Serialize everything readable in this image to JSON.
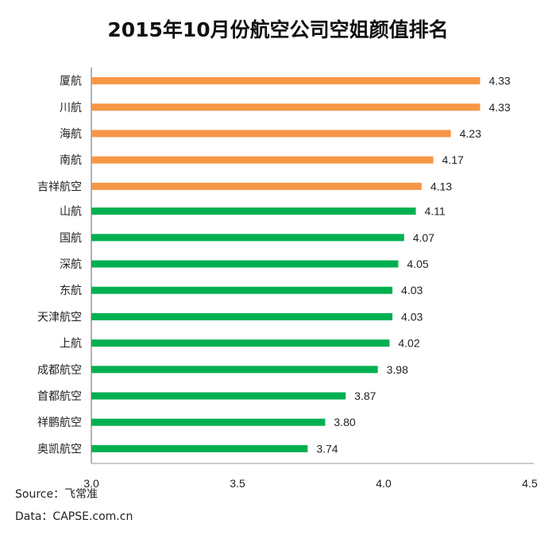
{
  "chart_data": {
    "type": "bar",
    "orientation": "horizontal",
    "title": "2015年10月份航空公司空姐颜值排名",
    "categories": [
      "厦航",
      "川航",
      "海航",
      "南航",
      "吉祥航空",
      "山航",
      "国航",
      "深航",
      "东航",
      "天津航空",
      "上航",
      "成都航空",
      "首都航空",
      "祥鹏航空",
      "奥凯航空"
    ],
    "values": [
      4.33,
      4.33,
      4.23,
      4.17,
      4.13,
      4.11,
      4.07,
      4.05,
      4.03,
      4.03,
      4.02,
      3.98,
      3.87,
      3.8,
      3.74
    ],
    "value_labels": [
      "4.33",
      "4.33",
      "4.23",
      "4.17",
      "4.13",
      "4.11",
      "4.07",
      "4.05",
      "4.03",
      "4.03",
      "4.02",
      "3.98",
      "3.87",
      "3.80",
      "3.74"
    ],
    "bar_colors": [
      "#F79646",
      "#F79646",
      "#F79646",
      "#F79646",
      "#F79646",
      "#00B050",
      "#00B050",
      "#00B050",
      "#00B050",
      "#00B050",
      "#00B050",
      "#00B050",
      "#00B050",
      "#00B050",
      "#00B050"
    ],
    "xlim": [
      3.0,
      4.5
    ],
    "xticks": [
      3.0,
      3.5,
      4.0,
      4.5
    ],
    "xtick_labels": [
      "3.0",
      "3.5",
      "4.0",
      "4.5"
    ],
    "xlabel": "",
    "ylabel": "",
    "grid": false
  },
  "footer": {
    "source": "Source：飞常准",
    "data": "Data：CAPSE.com.cn"
  }
}
